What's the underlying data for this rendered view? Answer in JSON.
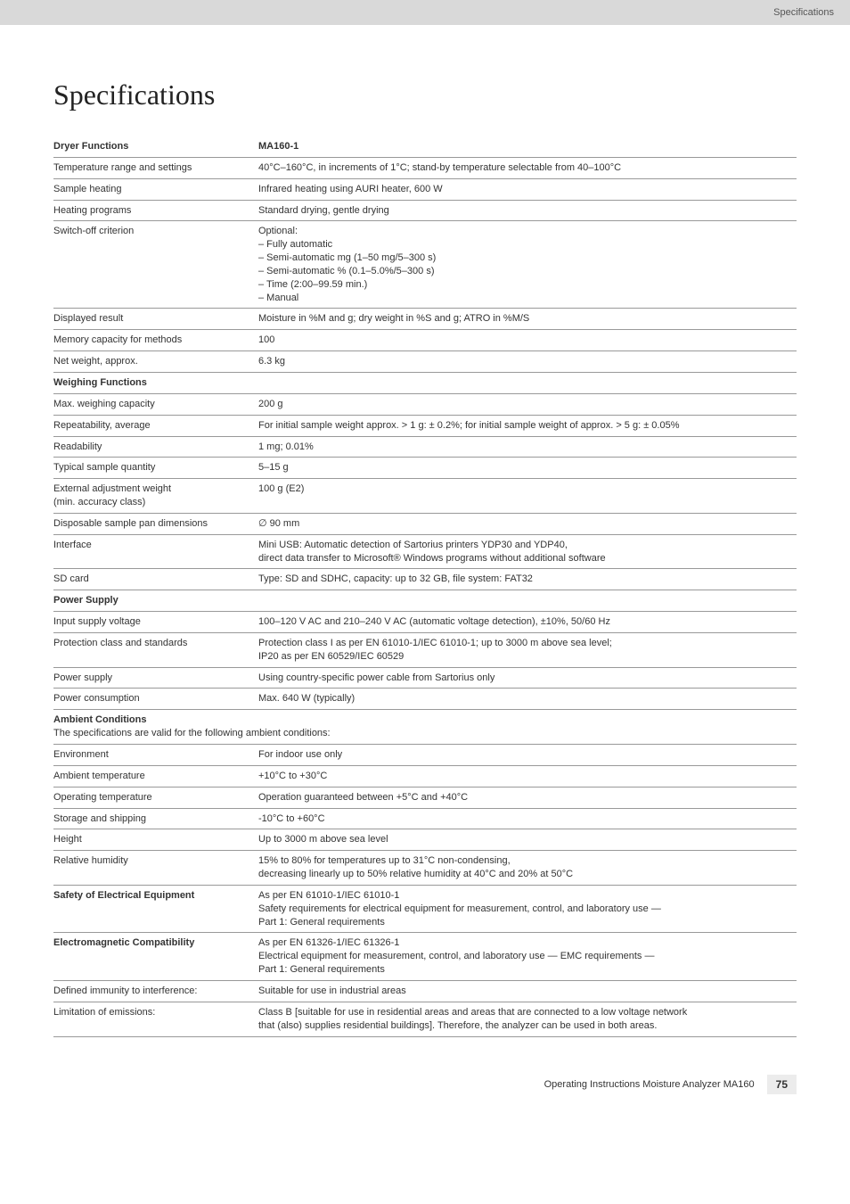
{
  "header": {
    "section": "Specifications"
  },
  "title": "Specifications",
  "rows": [
    {
      "label": "Dryer Functions",
      "value": "MA160-1",
      "bold": true
    },
    {
      "label": "Temperature range and settings",
      "value": "40°C–160°C, in increments of 1°C; stand-by temperature selectable from 40–100°C"
    },
    {
      "label": "Sample heating",
      "value": "Infrared heating using AURI heater, 600 W"
    },
    {
      "label": "Heating programs",
      "value": "Standard drying, gentle drying"
    },
    {
      "label": "Switch-off criterion",
      "multiline": [
        "Optional:",
        "– Fully automatic",
        "– Semi-automatic mg (1–50 mg/5–300 s)",
        "– Semi-automatic % (0.1–5.0%/5–300 s)",
        "– Time (2:00–99.59 min.)",
        "– Manual"
      ]
    },
    {
      "label": "Displayed result",
      "value": "Moisture in %M and g; dry weight in %S and g; ATRO in %M/S"
    },
    {
      "label": "Memory capacity for methods",
      "value": "100"
    },
    {
      "label": "Net weight, approx.",
      "value": "6.3 kg"
    },
    {
      "label": "Weighing Functions",
      "value": "",
      "bold": true
    },
    {
      "label": "Max. weighing capacity",
      "value": "200 g"
    },
    {
      "label": "Repeatability, average",
      "value": "For initial sample weight approx. > 1 g: ± 0.2%; for initial sample weight of approx. > 5 g: ± 0.05%"
    },
    {
      "label": "Readability",
      "value": "1 mg; 0.01%"
    },
    {
      "label": "Typical sample quantity",
      "value": "5–15 g"
    },
    {
      "label": "External adjustment weight\n(min. accuracy class)",
      "value": "100 g (E2)"
    },
    {
      "label": "Disposable sample pan dimensions",
      "value": "∅ 90 mm"
    },
    {
      "label": "Interface",
      "multiline": [
        "Mini USB: Automatic detection of Sartorius printers YDP30 and YDP40,",
        "direct data transfer to Microsoft® Windows programs without additional software"
      ]
    },
    {
      "label": "SD card",
      "value": "Type: SD and SDHC, capacity: up to 32 GB, file system: FAT32"
    },
    {
      "label": "Power Supply",
      "value": "",
      "bold": true
    },
    {
      "label": "Input supply voltage",
      "value": "100–120 V AC and 210–240 V AC (automatic voltage detection), ±10%, 50/60 Hz"
    },
    {
      "label": "Protection class and standards",
      "multiline": [
        "Protection class I as per EN 61010-1/IEC 61010-1; up to 3000 m above sea level;",
        "IP20 as per EN 60529/IEC 60529"
      ]
    },
    {
      "label": "Power supply",
      "value": "Using country-specific power cable from Sartorius only"
    },
    {
      "label": "Power consumption",
      "value": "Max. 640 W (typically)"
    },
    {
      "label": "Ambient Conditions",
      "value": "",
      "bold": true,
      "sub": "The specifications are valid for the following ambient conditions:"
    },
    {
      "label": "Environment",
      "value": "For indoor use only"
    },
    {
      "label": "Ambient temperature",
      "value": "+10°C to +30°C"
    },
    {
      "label": "Operating temperature",
      "value": "Operation guaranteed between +5°C and +40°C"
    },
    {
      "label": "Storage and shipping",
      "value": "-10°C to +60°C"
    },
    {
      "label": "Height",
      "value": "Up to 3000 m above sea level"
    },
    {
      "label": "Relative humidity",
      "multiline": [
        "15% to 80% for temperatures up to 31°C non-condensing,",
        "decreasing linearly up to 50% relative humidity at 40°C and 20% at 50°C"
      ]
    },
    {
      "label": "Safety of Electrical Equipment",
      "bold": true,
      "multiline": [
        "As per EN 61010-1/IEC 61010-1",
        "Safety requirements for electrical equipment for measurement, control, and laboratory use —",
        "Part 1: General requirements"
      ]
    },
    {
      "label": "Electromagnetic Compatibility",
      "bold": true,
      "multiline": [
        "As per EN 61326-1/IEC 61326-1",
        "Electrical equipment for measurement, control, and laboratory use — EMC requirements —",
        "Part 1: General requirements"
      ]
    },
    {
      "label": "Defined immunity to interference:",
      "value": "Suitable for use in industrial areas"
    },
    {
      "label": "Limitation of emissions:",
      "multiline": [
        "Class B [suitable for use in residential areas and areas that are connected to a low voltage network",
        "that (also) supplies residential buildings]. Therefore, the analyzer can be used in both areas."
      ]
    }
  ],
  "footer": {
    "text": "Operating Instructions Moisture Analyzer MA160",
    "page": "75"
  },
  "style": {
    "page_bg": "#ffffff",
    "header_bg": "#d9d9d9",
    "text_color": "#333333",
    "rule_color": "#999999",
    "title_fontsize": 32,
    "body_fontsize": 11
  }
}
